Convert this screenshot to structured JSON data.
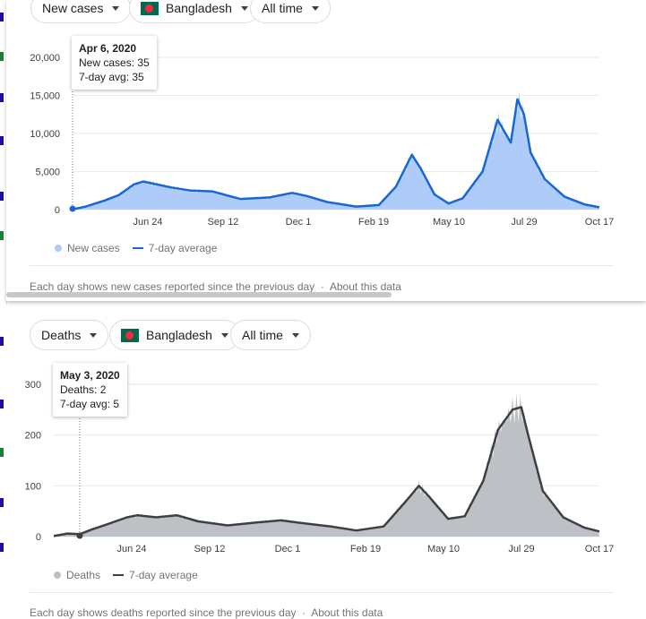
{
  "charts": [
    {
      "controls": {
        "metric": "New cases",
        "country": "Bangladesh",
        "range": "All time"
      },
      "tooltip": {
        "date": "Apr 6, 2020",
        "line1": "New cases: 35",
        "line2": "7-day avg: 35"
      },
      "legend": {
        "bars": "New cases",
        "line": "7-day average"
      },
      "footer": {
        "text": "Each day shows new cases reported since the previous day",
        "link": "About this data"
      }
    },
    {
      "controls": {
        "metric": "Deaths",
        "country": "Bangladesh",
        "range": "All time"
      },
      "tooltip": {
        "date": "May 3, 2020",
        "line1": "Deaths: 2",
        "line2": "7-day avg: 5"
      },
      "legend": {
        "bars": "Deaths",
        "line": "7-day average"
      },
      "footer": {
        "text": "Each day shows deaths reported since the previous day",
        "link": "About this data"
      }
    }
  ],
  "colors": {
    "cases_bar": "#aecbfa",
    "cases_line": "#1967d2",
    "deaths_bar": "#bdc1c6",
    "deaths_line": "#3c4043"
  },
  "chart_data": [
    {
      "type": "area",
      "series": [
        {
          "name": "7-day average",
          "x": [
            "2020-04-06",
            "2020-04-20",
            "2020-05-10",
            "2020-05-25",
            "2020-06-10",
            "2020-06-20",
            "2020-07-01",
            "2020-07-20",
            "2020-08-10",
            "2020-09-01",
            "2020-10-01",
            "2020-11-01",
            "2020-11-25",
            "2020-12-10",
            "2021-01-01",
            "2021-02-01",
            "2021-02-25",
            "2021-03-15",
            "2021-04-01",
            "2021-04-10",
            "2021-04-25",
            "2021-05-10",
            "2021-05-25",
            "2021-06-15",
            "2021-07-01",
            "2021-07-15",
            "2021-07-22",
            "2021-07-29",
            "2021-08-05",
            "2021-08-20",
            "2021-09-10",
            "2021-10-01",
            "2021-10-17"
          ],
          "values": [
            35,
            400,
            1200,
            1900,
            3300,
            3700,
            3400,
            2900,
            2500,
            2400,
            1400,
            1600,
            2200,
            1800,
            1000,
            400,
            600,
            3000,
            7200,
            5500,
            2000,
            800,
            1500,
            5000,
            11800,
            8800,
            14500,
            12500,
            7500,
            4000,
            1700,
            700,
            300
          ]
        }
      ],
      "xticks": [
        "Jun 24",
        "Sep 12",
        "Dec 1",
        "Feb 19",
        "May 10",
        "Jul 29",
        "Oct 17"
      ],
      "yticks": [
        "0",
        "5,000",
        "10,000",
        "15,000",
        "20,000"
      ],
      "ylim": [
        0,
        20000
      ]
    },
    {
      "type": "area",
      "series": [
        {
          "name": "7-day average",
          "x": [
            "2020-04-06",
            "2020-04-20",
            "2020-05-03",
            "2020-05-15",
            "2020-06-01",
            "2020-06-20",
            "2020-07-01",
            "2020-07-20",
            "2020-08-10",
            "2020-09-01",
            "2020-10-01",
            "2020-11-01",
            "2020-11-25",
            "2020-12-15",
            "2021-01-15",
            "2021-02-10",
            "2021-03-10",
            "2021-04-01",
            "2021-04-15",
            "2021-04-25",
            "2021-05-15",
            "2021-06-01",
            "2021-06-20",
            "2021-07-05",
            "2021-07-20",
            "2021-07-29",
            "2021-08-05",
            "2021-08-20",
            "2021-09-10",
            "2021-10-01",
            "2021-10-17"
          ],
          "values": [
            1,
            6,
            5,
            14,
            25,
            38,
            42,
            38,
            42,
            30,
            22,
            28,
            32,
            27,
            20,
            12,
            20,
            68,
            100,
            80,
            35,
            40,
            110,
            210,
            250,
            255,
            200,
            90,
            38,
            18,
            10
          ]
        }
      ],
      "xticks": [
        "Jun 24",
        "Sep 12",
        "Dec 1",
        "Feb 19",
        "May 10",
        "Jul 29",
        "Oct 17"
      ],
      "yticks": [
        "0",
        "100",
        "200",
        "300"
      ],
      "ylim": [
        0,
        300
      ]
    }
  ]
}
